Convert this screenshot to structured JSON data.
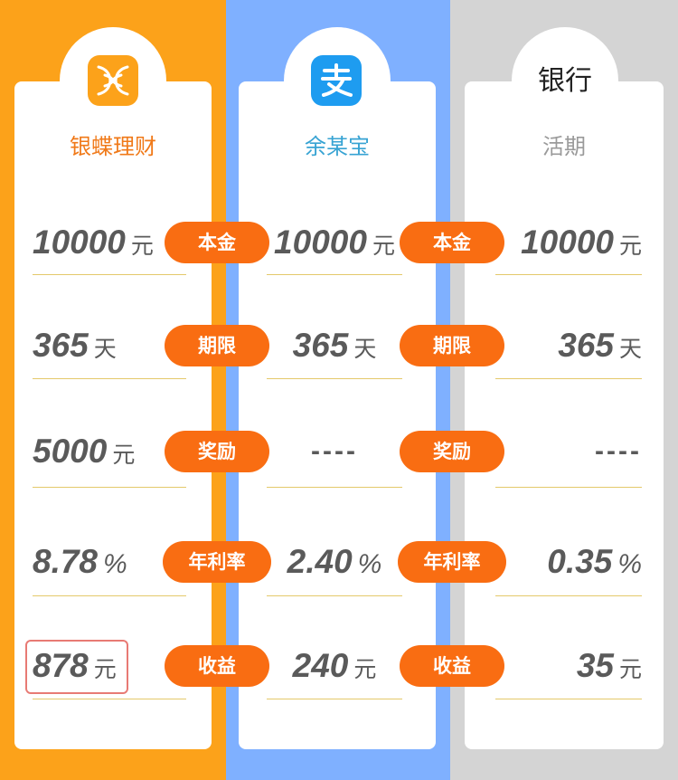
{
  "columns": [
    {
      "name": "银蝶理财",
      "logo": "butterfly-icon",
      "color": "#f07918"
    },
    {
      "name": "余某宝",
      "logo": "alipay-icon",
      "color": "#37a3d3"
    },
    {
      "name": "活期",
      "logo_text": "银行",
      "color": "#9a9a9a"
    }
  ],
  "labels": [
    "本金",
    "期限",
    "奖励",
    "年利率",
    "收益"
  ],
  "rows": [
    {
      "c1": {
        "num": "10000",
        "unit": "元"
      },
      "c2": {
        "num": "10000",
        "unit": "元"
      },
      "c3": {
        "num": "10000",
        "unit": "元"
      }
    },
    {
      "c1": {
        "num": "365",
        "unit": "天"
      },
      "c2": {
        "num": "365",
        "unit": "天"
      },
      "c3": {
        "num": "365",
        "unit": "天"
      }
    },
    {
      "c1": {
        "num": "5000",
        "unit": "元"
      },
      "c2": {
        "dash": "----"
      },
      "c3": {
        "dash": "----"
      }
    },
    {
      "c1": {
        "num": "8.78",
        "unit": "%"
      },
      "c2": {
        "num": "2.40",
        "unit": "%"
      },
      "c3": {
        "num": "0.35",
        "unit": "%"
      }
    },
    {
      "c1": {
        "num": "878",
        "unit": "元"
      },
      "c2": {
        "num": "240",
        "unit": "元"
      },
      "c3": {
        "num": "35",
        "unit": "元"
      }
    }
  ],
  "colors": {
    "accent": "#f96d12",
    "orange_bg": "#fca21a",
    "blue_bg": "#7fb0ff",
    "gray_bg": "#d4d4d4"
  }
}
